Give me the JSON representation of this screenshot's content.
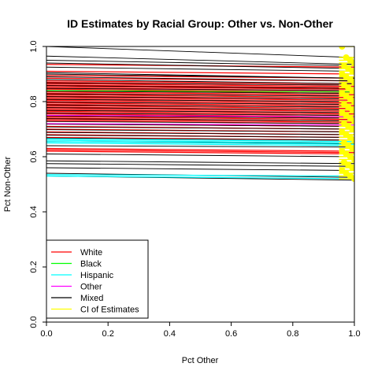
{
  "chart_data": {
    "type": "line",
    "title": "ID Estimates by Racial Group: Other vs. Non-Other",
    "xlabel": "Pct Other",
    "ylabel": "Pct Non-Other",
    "xlim": [
      0,
      1
    ],
    "ylim": [
      0,
      1
    ],
    "x_ticks": [
      "0.0",
      "0.2",
      "0.4",
      "0.6",
      "0.8",
      "1.0"
    ],
    "y_ticks": [
      "0.0",
      "0.2",
      "0.4",
      "0.6",
      "0.8",
      "1.0"
    ],
    "grid": false,
    "legend_position": "bottom-left",
    "legend": [
      {
        "label": "White",
        "color": "#ff0000"
      },
      {
        "label": "Black",
        "color": "#00ff00"
      },
      {
        "label": "Hispanic",
        "color": "#00ffff"
      },
      {
        "label": "Other",
        "color": "#ff00ff"
      },
      {
        "label": "Mixed",
        "color": "#000000"
      },
      {
        "label": "CI of Estimates",
        "color": "#ffff00"
      }
    ],
    "tomography_lines": {
      "description": "Each line runs from (0, y_start) to (1, y_end)",
      "red_starts": [
        0.935,
        0.91,
        0.895,
        0.885,
        0.875,
        0.87,
        0.865,
        0.86,
        0.855,
        0.85,
        0.845,
        0.84,
        0.835,
        0.83,
        0.825,
        0.82,
        0.815,
        0.81,
        0.805,
        0.8,
        0.795,
        0.79,
        0.785,
        0.78,
        0.775,
        0.77,
        0.765,
        0.76,
        0.755,
        0.75,
        0.745,
        0.74,
        0.735,
        0.73,
        0.72,
        0.71,
        0.7,
        0.69,
        0.68,
        0.67,
        0.63,
        0.625,
        0.62
      ],
      "red_slope": -0.01,
      "black_starts": [
        1.0,
        0.965,
        0.95,
        0.94,
        0.925,
        0.905,
        0.9,
        0.89,
        0.88,
        0.868,
        0.858,
        0.848,
        0.838,
        0.828,
        0.818,
        0.808,
        0.798,
        0.788,
        0.778,
        0.768,
        0.758,
        0.748,
        0.738,
        0.728,
        0.718,
        0.708,
        0.698,
        0.688,
        0.678,
        0.668,
        0.655,
        0.64,
        0.61,
        0.585,
        0.575,
        0.56,
        0.54,
        0.53
      ],
      "black_ends": [
        0.96,
        0.935,
        0.93,
        0.92,
        0.91,
        0.885,
        0.885,
        0.875,
        0.865,
        0.86,
        0.848,
        0.84,
        0.83,
        0.82,
        0.81,
        0.8,
        0.79,
        0.78,
        0.77,
        0.76,
        0.75,
        0.74,
        0.73,
        0.72,
        0.71,
        0.7,
        0.69,
        0.68,
        0.67,
        0.66,
        0.648,
        0.635,
        0.6,
        0.575,
        0.565,
        0.55,
        0.525,
        0.515
      ],
      "cyan_starts": [
        0.665,
        0.66,
        0.655,
        0.65,
        0.535,
        0.53
      ],
      "cyan_ends": [
        0.655,
        0.65,
        0.645,
        0.64,
        0.53,
        0.52
      ],
      "magenta_starts": [
        0.75,
        0.72
      ],
      "magenta_ends": [
        0.745,
        0.715
      ],
      "green_starts": [
        0.84
      ],
      "green_ends": [
        0.835
      ]
    },
    "ci_points": {
      "x_center": 0.98,
      "x_spread": 0.02,
      "y": [
        1.0,
        0.96,
        0.95,
        0.94,
        0.93,
        0.92,
        0.91,
        0.9,
        0.89,
        0.88,
        0.87,
        0.86,
        0.85,
        0.84,
        0.83,
        0.82,
        0.81,
        0.8,
        0.79,
        0.78,
        0.77,
        0.76,
        0.75,
        0.74,
        0.73,
        0.72,
        0.71,
        0.7,
        0.69,
        0.68,
        0.67,
        0.66,
        0.65,
        0.64,
        0.63,
        0.62,
        0.61,
        0.6,
        0.59,
        0.58,
        0.57,
        0.56,
        0.55,
        0.54,
        0.53,
        0.52
      ]
    }
  }
}
